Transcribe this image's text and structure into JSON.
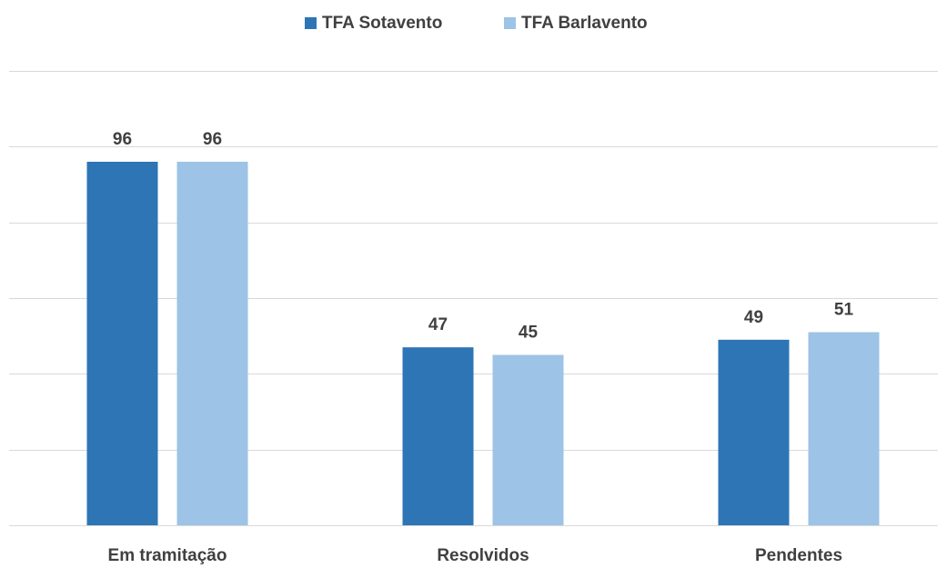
{
  "chart_data": {
    "type": "bar",
    "categories": [
      "Em tramitação",
      "Resolvidos",
      "Pendentes"
    ],
    "series": [
      {
        "name": "TFA Sotavento",
        "color": "#2e75b6",
        "values": [
          96,
          47,
          49
        ]
      },
      {
        "name": "TFA Barlavento",
        "color": "#9dc3e6",
        "values": [
          96,
          45,
          51
        ]
      }
    ],
    "ylim": [
      0,
      120
    ],
    "yticks": [
      0,
      20,
      40,
      60,
      80,
      100,
      120
    ],
    "grid": true,
    "legend": "top"
  }
}
